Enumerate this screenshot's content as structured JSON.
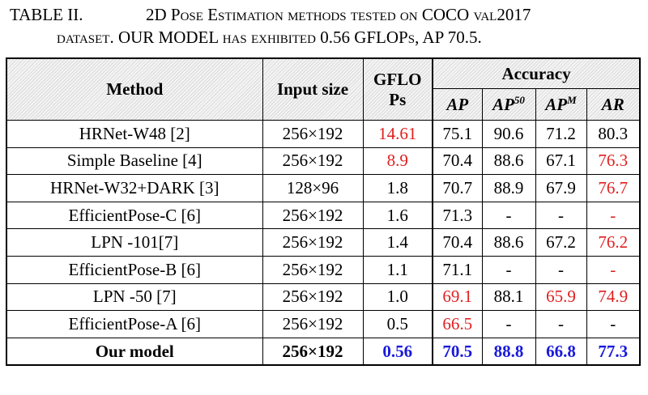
{
  "caption": {
    "label": "TABLE II.",
    "line1_a": "2D ",
    "line1_sc1": "Pose Estimation methods tested on",
    "line1_b": " COCO ",
    "line1_sc2": "val2017",
    "line2_sc1": "dataset",
    "line2_a": ". OUR MODEL ",
    "line2_sc2": "has exhibited",
    "line2_b": " 0.56 GFLOP",
    "line2_sc3": "s",
    "line2_c": ", AP 70.5."
  },
  "header": {
    "method": "Method",
    "input_size": "Input size",
    "gflops_line1": "GFLO",
    "gflops_line2": "Ps",
    "accuracy": "Accuracy",
    "ap": "AP",
    "ap50_base": "AP",
    "ap50_sup": "50",
    "apm_base": "AP",
    "apm_sup": "M",
    "ar": "AR"
  },
  "rows": [
    {
      "method": "HRNet-W48 [2]",
      "input": "256×192",
      "gflops": "14.61",
      "ap": "75.1",
      "ap50": "90.6",
      "apm": "71.2",
      "ar": "80.3"
    },
    {
      "method": "Simple Baseline [4]",
      "input": "256×192",
      "gflops": "8.9",
      "ap": "70.4",
      "ap50": "88.6",
      "apm": "67.1",
      "ar": "76.3"
    },
    {
      "method": "HRNet-W32+DARK [3]",
      "input": "128×96",
      "gflops": "1.8",
      "ap": "70.7",
      "ap50": "88.9",
      "apm": "67.9",
      "ar": "76.7"
    },
    {
      "method": "EfficientPose-C [6]",
      "input": "256×192",
      "gflops": "1.6",
      "ap": "71.3",
      "ap50": "-",
      "apm": "-",
      "ar": "-"
    },
    {
      "method": "LPN -101[7]",
      "input": "256×192",
      "gflops": "1.4",
      "ap": "70.4",
      "ap50": "88.6",
      "apm": "67.2",
      "ar": "76.2"
    },
    {
      "method": "EfficientPose-B [6]",
      "input": "256×192",
      "gflops": "1.1",
      "ap": "71.1",
      "ap50": "-",
      "apm": "-",
      "ar": "-"
    },
    {
      "method": "LPN -50 [7]",
      "input": "256×192",
      "gflops": "1.0",
      "ap": "69.1",
      "ap50": "88.1",
      "apm": "65.9",
      "ar": "74.9"
    },
    {
      "method": "EfficientPose-A [6]",
      "input": "256×192",
      "gflops": "0.5",
      "ap": "66.5",
      "ap50": "-",
      "apm": "-",
      "ar": "-"
    }
  ],
  "ours": {
    "method": "Our model",
    "input": "256×192",
    "gflops": "0.56",
    "ap": "70.5",
    "ap50": "88.8",
    "apm": "66.8",
    "ar": "77.3"
  },
  "colors": {
    "highlight_red": "#e02020",
    "highlight_blue": "#1a1adc"
  }
}
